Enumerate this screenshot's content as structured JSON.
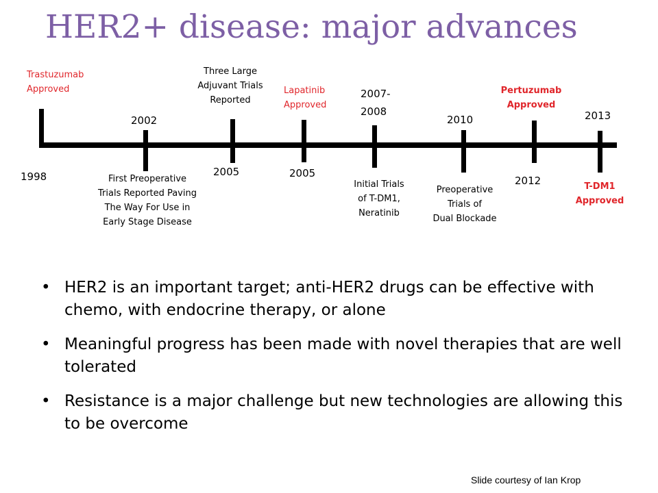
{
  "slide": {
    "title": "HER2+ disease: major advances",
    "credit": "Slide courtesy of Ian Krop"
  },
  "timeline": {
    "events": [
      {
        "year": "1998",
        "label": "Trastuzumab\nApproved"
      },
      {
        "year": "2002",
        "label": "First Preoperative\nTrials Reported Paving\nThe Way For Use in\nEarly Stage Disease"
      },
      {
        "year": "2005",
        "label": "Three Large\nAdjuvant Trials\nReported"
      },
      {
        "year": "2005",
        "label": "Lapatinib\nApproved"
      },
      {
        "year": "2007-\n2008",
        "label": "Initial Trials\nof T-DM1,\nNeratinib"
      },
      {
        "year": "2010",
        "label": "Preoperative\nTrials of\nDual Blockade"
      },
      {
        "year": "2012",
        "label": "Pertuzumab\nApproved"
      },
      {
        "year": "2013",
        "label": "T-DM1\nApproved"
      }
    ],
    "colors": {
      "approval_text": "#e0262b",
      "title": "#7d5fa5",
      "line": "#000000"
    }
  },
  "bullets": [
    "HER2 is an important target; anti-HER2 drugs can be effective with chemo, with endocrine therapy, or alone",
    "Meaningful progress has been made with novel therapies that are well tolerated",
    "Resistance is a major challenge but new technologies are allowing this to be overcome"
  ]
}
